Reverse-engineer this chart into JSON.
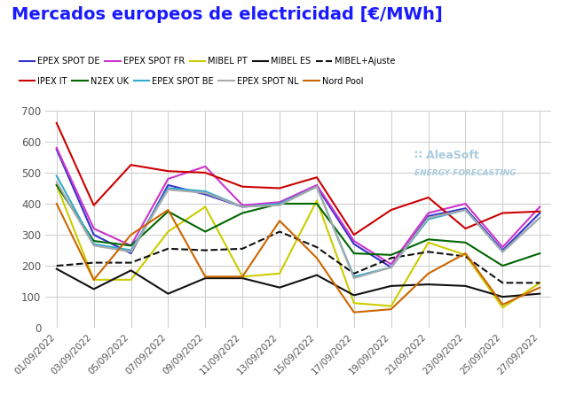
{
  "title": "Mercados europeos de electricidad [€/MWh]",
  "x_labels": [
    "01/09/2022",
    "03/09/2022",
    "05/09/2022",
    "07/09/2022",
    "09/09/2022",
    "11/09/2022",
    "13/09/2022",
    "15/09/2022",
    "17/09/2022",
    "19/09/2022",
    "21/09/2022",
    "23/09/2022",
    "25/09/2022",
    "27/09/2022"
  ],
  "ylim": [
    0,
    700
  ],
  "yticks": [
    0,
    100,
    200,
    300,
    400,
    500,
    600,
    700
  ],
  "series": {
    "EPEX SPOT DE": {
      "color": "#3333cc",
      "linestyle": "-",
      "linewidth": 1.5,
      "values": [
        575,
        300,
        240,
        460,
        430,
        390,
        400,
        455,
        270,
        195,
        360,
        385,
        250,
        370
      ]
    },
    "EPEX SPOT FR": {
      "color": "#cc33cc",
      "linestyle": "-",
      "linewidth": 1.5,
      "values": [
        580,
        320,
        265,
        480,
        520,
        395,
        405,
        460,
        280,
        205,
        370,
        400,
        260,
        390
      ]
    },
    "MIBEL PT": {
      "color": "#cccc00",
      "linestyle": "-",
      "linewidth": 1.5,
      "values": [
        460,
        155,
        155,
        310,
        390,
        165,
        175,
        410,
        80,
        70,
        275,
        235,
        65,
        145
      ]
    },
    "MIBEL ES": {
      "color": "#111111",
      "linestyle": "-",
      "linewidth": 1.5,
      "values": [
        190,
        125,
        185,
        110,
        160,
        160,
        130,
        170,
        105,
        135,
        140,
        135,
        100,
        110
      ]
    },
    "MIBEL+Ajuste": {
      "color": "#111111",
      "linestyle": "--",
      "linewidth": 1.5,
      "values": [
        200,
        210,
        210,
        255,
        250,
        255,
        310,
        260,
        175,
        225,
        245,
        230,
        145,
        145
      ]
    },
    "IPEX IT": {
      "color": "#cc0000",
      "linestyle": "-",
      "linewidth": 1.5,
      "values": [
        660,
        395,
        525,
        505,
        500,
        455,
        450,
        485,
        300,
        380,
        420,
        320,
        370,
        375
      ]
    },
    "N2EX UK": {
      "color": "#006600",
      "linestyle": "-",
      "linewidth": 1.5,
      "values": [
        460,
        280,
        265,
        375,
        310,
        370,
        400,
        400,
        240,
        235,
        285,
        275,
        200,
        240
      ]
    },
    "EPEX SPOT BE": {
      "color": "#33aacc",
      "linestyle": "-",
      "linewidth": 1.5,
      "values": [
        490,
        270,
        250,
        450,
        440,
        390,
        400,
        455,
        165,
        195,
        350,
        380,
        245,
        355
      ]
    },
    "EPEX SPOT NL": {
      "color": "#aaaaaa",
      "linestyle": "-",
      "linewidth": 1.5,
      "values": [
        470,
        265,
        245,
        445,
        435,
        390,
        395,
        455,
        160,
        195,
        355,
        380,
        245,
        355
      ]
    },
    "Nord Pool": {
      "color": "#cc6600",
      "linestyle": "-",
      "linewidth": 1.5,
      "values": [
        400,
        155,
        300,
        380,
        165,
        165,
        345,
        225,
        50,
        60,
        175,
        240,
        75,
        130
      ]
    }
  },
  "legend_order": [
    "EPEX SPOT DE",
    "EPEX SPOT FR",
    "MIBEL PT",
    "MIBEL ES",
    "MIBEL+Ajuste",
    "IPEX IT",
    "N2EX UK",
    "EPEX SPOT BE",
    "EPEX SPOT NL",
    "Nord Pool"
  ],
  "background_color": "#ffffff",
  "grid_color": "#cccccc",
  "title_color": "#1a1aff",
  "title_fontsize": 14,
  "legend_fontsize": 7.0,
  "watermark_line1": "∷ AleaSoft",
  "watermark_line2": "ENERGY FORECASTING",
  "watermark_color": "#aaccdd"
}
